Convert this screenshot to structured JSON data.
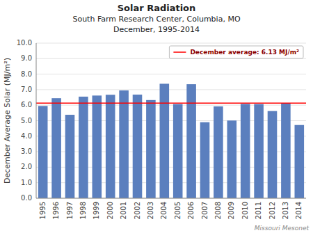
{
  "chart_data": {
    "type": "bar",
    "title": "Solar Radiation\nSouth Farm Research Center, Columbia, MO\nDecember, 1995-2014",
    "ylabel": "December Average Solar (MJ/m²)",
    "categories": [
      "1995",
      "1996",
      "1997",
      "1998",
      "1999",
      "2000",
      "2001",
      "2002",
      "2003",
      "2004",
      "2005",
      "2006",
      "2007",
      "2008",
      "2009",
      "2010",
      "2011",
      "2012",
      "2013",
      "2014"
    ],
    "values": [
      5.95,
      6.45,
      5.38,
      6.55,
      6.62,
      6.67,
      6.95,
      6.68,
      6.33,
      7.38,
      6.07,
      7.35,
      4.9,
      5.92,
      5.01,
      6.08,
      6.07,
      5.62,
      6.1,
      4.72
    ],
    "color": "#5b7fbe",
    "reference_line": {
      "value": 6.13,
      "label": "December average: 6.13 MJ/m²",
      "color": "red"
    },
    "legend": "upper right",
    "ylim": [
      0.0,
      10.0
    ],
    "yticks": [
      {
        "value": 0,
        "label": "0.0"
      },
      {
        "value": 1,
        "label": "1.0"
      },
      {
        "value": 2,
        "label": "2.0"
      },
      {
        "value": 3,
        "label": "3.0"
      },
      {
        "value": 4,
        "label": "4.0"
      },
      {
        "value": 5,
        "label": "5.0"
      },
      {
        "value": 6,
        "label": "6.0"
      },
      {
        "value": 7,
        "label": "7.0"
      },
      {
        "value": 8,
        "label": "8.0"
      },
      {
        "value": 9,
        "label": "9.0"
      },
      {
        "value": 10,
        "label": "10.0"
      }
    ],
    "grid": true,
    "annotations": [
      "Missouri Mesonet"
    ]
  }
}
